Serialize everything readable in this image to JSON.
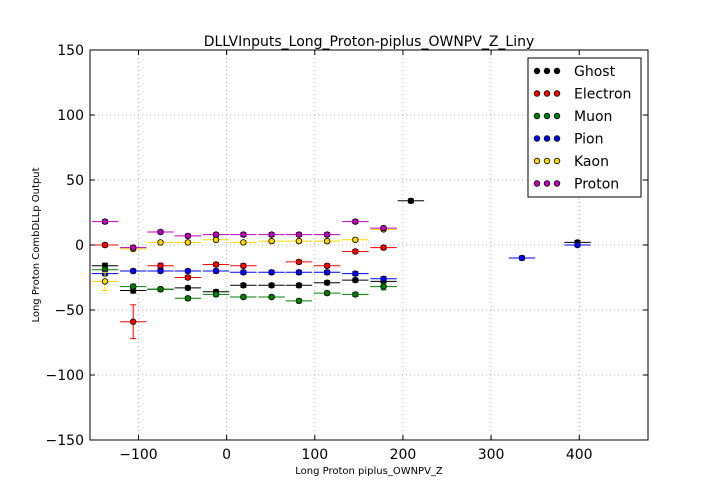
{
  "chart_data": {
    "type": "scatter",
    "title": "DLLVInputs_Long_Proton-piplus_OWNPV_Z_Liny",
    "xlabel": "Long Proton piplus_OWNPV_Z",
    "ylabel": "Long Proton CombDLLp Output",
    "xlim": [
      -155,
      478
    ],
    "ylim": [
      -150,
      150
    ],
    "xticks": [
      -100,
      0,
      100,
      200,
      300,
      400
    ],
    "yticks": [
      -150,
      -100,
      -50,
      0,
      50,
      100,
      150
    ],
    "grid": true,
    "legend_position": "top-right",
    "series": [
      {
        "name": "Ghost",
        "color": "#000000",
        "points": [
          {
            "x": -138,
            "xerr": 15,
            "y": -16,
            "yerr": 2
          },
          {
            "x": -106,
            "xerr": 15,
            "y": -35,
            "yerr": 2
          },
          {
            "x": -75,
            "xerr": 15,
            "y": -34,
            "yerr": 1.5
          },
          {
            "x": -44,
            "xerr": 15,
            "y": -33,
            "yerr": 1.5
          },
          {
            "x": -12,
            "xerr": 15,
            "y": -36,
            "yerr": 1.5
          },
          {
            "x": 19,
            "xerr": 15,
            "y": -31,
            "yerr": 1.5
          },
          {
            "x": 51,
            "xerr": 15,
            "y": -31,
            "yerr": 1.5
          },
          {
            "x": 82,
            "xerr": 15,
            "y": -31,
            "yerr": 1.5
          },
          {
            "x": 114,
            "xerr": 15,
            "y": -29,
            "yerr": 1.5
          },
          {
            "x": 146,
            "xerr": 15,
            "y": -27,
            "yerr": 1.5
          },
          {
            "x": 178,
            "xerr": 15,
            "y": -28,
            "yerr": 3
          },
          {
            "x": 209,
            "xerr": 15,
            "y": 34,
            "yerr": 1.5
          },
          {
            "x": 398,
            "xerr": 15,
            "y": 2,
            "yerr": 1.5
          }
        ]
      },
      {
        "name": "Electron",
        "color": "#ff0000",
        "points": [
          {
            "x": -138,
            "xerr": 15,
            "y": 0,
            "yerr": 1.5
          },
          {
            "x": -106,
            "xerr": 15,
            "y": -59,
            "yerr": 13
          },
          {
            "x": -75,
            "xerr": 15,
            "y": -16,
            "yerr": 2
          },
          {
            "x": -44,
            "xerr": 15,
            "y": -25,
            "yerr": 1.5
          },
          {
            "x": -12,
            "xerr": 15,
            "y": -15,
            "yerr": 1.5
          },
          {
            "x": 19,
            "xerr": 15,
            "y": -16,
            "yerr": 1.5
          },
          {
            "x": 82,
            "xerr": 15,
            "y": -13,
            "yerr": 1.5
          },
          {
            "x": 114,
            "xerr": 15,
            "y": -16,
            "yerr": 1.5
          },
          {
            "x": 146,
            "xerr": 15,
            "y": -5,
            "yerr": 1.5
          },
          {
            "x": 178,
            "xerr": 15,
            "y": -2,
            "yerr": 1.5
          }
        ]
      },
      {
        "name": "Muon",
        "color": "#008000",
        "points": [
          {
            "x": -138,
            "xerr": 15,
            "y": -19,
            "yerr": 2
          },
          {
            "x": -106,
            "xerr": 15,
            "y": -32,
            "yerr": 2
          },
          {
            "x": -75,
            "xerr": 15,
            "y": -34,
            "yerr": 1.5
          },
          {
            "x": -44,
            "xerr": 15,
            "y": -41,
            "yerr": 1.5
          },
          {
            "x": -12,
            "xerr": 15,
            "y": -38,
            "yerr": 1.5
          },
          {
            "x": 19,
            "xerr": 15,
            "y": -40,
            "yerr": 1.5
          },
          {
            "x": 51,
            "xerr": 15,
            "y": -40,
            "yerr": 1.5
          },
          {
            "x": 82,
            "xerr": 15,
            "y": -43,
            "yerr": 1.5
          },
          {
            "x": 114,
            "xerr": 15,
            "y": -37,
            "yerr": 1.5
          },
          {
            "x": 146,
            "xerr": 15,
            "y": -38,
            "yerr": 1.5
          },
          {
            "x": 178,
            "xerr": 15,
            "y": -32,
            "yerr": 2.5
          }
        ]
      },
      {
        "name": "Pion",
        "color": "#0000ff",
        "points": [
          {
            "x": -138,
            "xerr": 15,
            "y": -22,
            "yerr": 1.5
          },
          {
            "x": -106,
            "xerr": 15,
            "y": -20,
            "yerr": 1.5
          },
          {
            "x": -75,
            "xerr": 15,
            "y": -20,
            "yerr": 1.5
          },
          {
            "x": -44,
            "xerr": 15,
            "y": -20,
            "yerr": 1.5
          },
          {
            "x": -12,
            "xerr": 15,
            "y": -20,
            "yerr": 1.5
          },
          {
            "x": 19,
            "xerr": 15,
            "y": -21,
            "yerr": 1.5
          },
          {
            "x": 51,
            "xerr": 15,
            "y": -21,
            "yerr": 1.5
          },
          {
            "x": 82,
            "xerr": 15,
            "y": -21,
            "yerr": 1.5
          },
          {
            "x": 114,
            "xerr": 15,
            "y": -21,
            "yerr": 1.5
          },
          {
            "x": 146,
            "xerr": 15,
            "y": -22,
            "yerr": 1.5
          },
          {
            "x": 178,
            "xerr": 15,
            "y": -26,
            "yerr": 1.5
          },
          {
            "x": 335,
            "xerr": 15,
            "y": -10,
            "yerr": 1.5
          },
          {
            "x": 398,
            "xerr": 15,
            "y": 0,
            "yerr": 1.5
          }
        ]
      },
      {
        "name": "Kaon",
        "color": "#ffd700",
        "points": [
          {
            "x": -138,
            "xerr": 15,
            "y": -28,
            "yerr": 7
          },
          {
            "x": -106,
            "xerr": 15,
            "y": -3,
            "yerr": 2
          },
          {
            "x": -75,
            "xerr": 15,
            "y": 2,
            "yerr": 1.5
          },
          {
            "x": -44,
            "xerr": 15,
            "y": 2,
            "yerr": 1.5
          },
          {
            "x": -12,
            "xerr": 15,
            "y": 4,
            "yerr": 1.5
          },
          {
            "x": 19,
            "xerr": 15,
            "y": 2,
            "yerr": 1.5
          },
          {
            "x": 51,
            "xerr": 15,
            "y": 3,
            "yerr": 1.5
          },
          {
            "x": 82,
            "xerr": 15,
            "y": 3,
            "yerr": 1.5
          },
          {
            "x": 114,
            "xerr": 15,
            "y": 3,
            "yerr": 1.5
          },
          {
            "x": 146,
            "xerr": 15,
            "y": 4,
            "yerr": 1.5
          },
          {
            "x": 178,
            "xerr": 15,
            "y": 12,
            "yerr": 1.5
          }
        ]
      },
      {
        "name": "Proton",
        "color": "#bf00bf",
        "points": [
          {
            "x": -138,
            "xerr": 15,
            "y": 18,
            "yerr": 1.5
          },
          {
            "x": -106,
            "xerr": 15,
            "y": -2,
            "yerr": 1.5
          },
          {
            "x": -75,
            "xerr": 15,
            "y": 10,
            "yerr": 1.5
          },
          {
            "x": -44,
            "xerr": 15,
            "y": 7,
            "yerr": 1.5
          },
          {
            "x": -12,
            "xerr": 15,
            "y": 8,
            "yerr": 1.5
          },
          {
            "x": 19,
            "xerr": 15,
            "y": 8,
            "yerr": 1.5
          },
          {
            "x": 51,
            "xerr": 15,
            "y": 8,
            "yerr": 1.5
          },
          {
            "x": 82,
            "xerr": 15,
            "y": 8,
            "yerr": 1.5
          },
          {
            "x": 114,
            "xerr": 15,
            "y": 8,
            "yerr": 1.5
          },
          {
            "x": 146,
            "xerr": 15,
            "y": 18,
            "yerr": 1.5
          },
          {
            "x": 178,
            "xerr": 15,
            "y": 13,
            "yerr": 1.5
          }
        ]
      }
    ]
  }
}
